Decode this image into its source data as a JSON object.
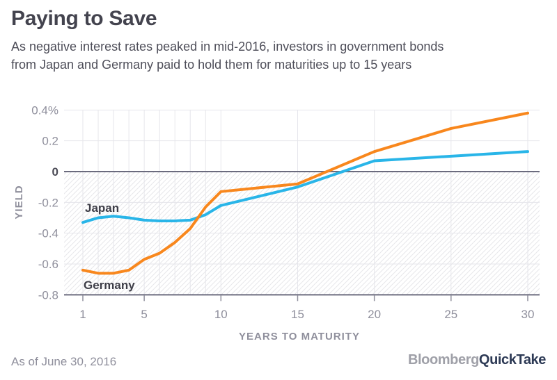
{
  "title": "Paying to Save",
  "subtitle": {
    "line1": "As negative interest rates peaked in mid-2016, investors in government bonds",
    "line2": "from Japan and Germany paid to hold them for maturities up to 15 years"
  },
  "footer": {
    "as_of": "As of June 30, 2016",
    "brand_gray": "Bloomberg",
    "brand_navy": "QuickTake"
  },
  "colors": {
    "japan_line": "#29b5e8",
    "germany_line": "#f8871d",
    "zero_axis_line": "#6b6b7e",
    "grid": "#e6e6eb",
    "hatch": "#e7e7ea",
    "tick": "#8f8f9c",
    "tick_text": "#8f8f9c",
    "title_text": "#43434e",
    "brand_navy": "#2d3a55"
  },
  "chart_data": {
    "type": "line",
    "title": "Paying to Save",
    "xlabel": "YEARS TO MATURITY",
    "ylabel": "YIELD",
    "x": [
      1,
      2,
      3,
      4,
      5,
      6,
      7,
      8,
      9,
      10,
      15,
      20,
      25,
      30
    ],
    "series": [
      {
        "name": "Japan",
        "color": "#29b5e8",
        "values": [
          -0.33,
          -0.3,
          -0.29,
          -0.3,
          -0.315,
          -0.32,
          -0.32,
          -0.315,
          -0.28,
          -0.22,
          -0.1,
          0.07,
          0.1,
          0.13
        ]
      },
      {
        "name": "Germany",
        "color": "#f8871d",
        "values": [
          -0.64,
          -0.66,
          -0.66,
          -0.64,
          -0.57,
          -0.53,
          -0.46,
          -0.37,
          -0.23,
          -0.13,
          -0.08,
          0.13,
          0.28,
          0.38
        ]
      }
    ],
    "x_ticks": [
      1,
      5,
      10,
      15,
      20,
      25,
      30
    ],
    "y_ticks": [
      {
        "v": 0.4,
        "label": "0.4%"
      },
      {
        "v": 0.2,
        "label": "0.2"
      },
      {
        "v": 0,
        "label": "0",
        "bold": true
      },
      {
        "v": -0.2,
        "label": "-0.2"
      },
      {
        "v": -0.4,
        "label": "-0.4"
      },
      {
        "v": -0.6,
        "label": "-0.6"
      },
      {
        "v": -0.8,
        "label": "-0.8"
      }
    ],
    "xlim": [
      1,
      30
    ],
    "ylim": [
      -0.8,
      0.4
    ],
    "grid": true,
    "negative_region_hatched": true,
    "legend_position": "inline-labels"
  }
}
